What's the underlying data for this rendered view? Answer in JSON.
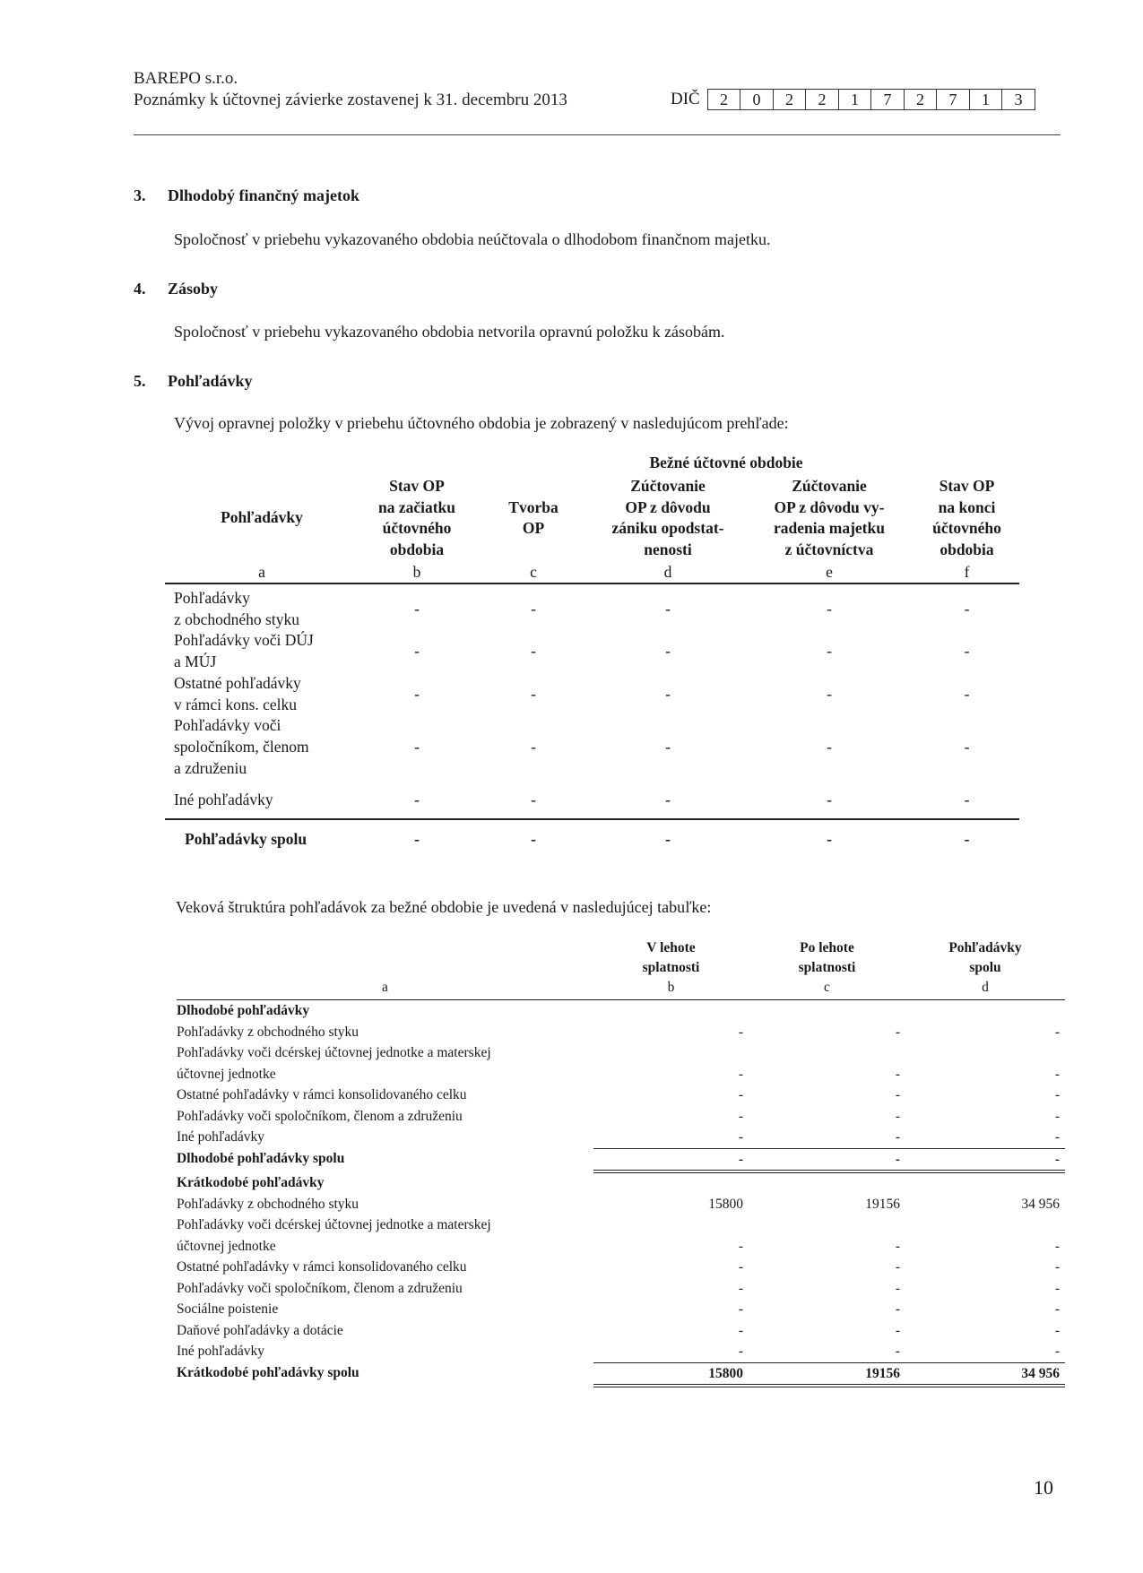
{
  "header": {
    "company": "BAREPO s.r.o.",
    "subtitle": "Poznámky k účtovnej závierke zostavenej k 31. decembru 2013",
    "dic_label": "DIČ",
    "dic_digits": [
      "2",
      "0",
      "2",
      "2",
      "1",
      "7",
      "2",
      "7",
      "1",
      "3"
    ]
  },
  "sections": [
    {
      "number": "3.",
      "title": "Dlhodobý finančný majetok",
      "text": "Spoločnosť v priebehu vykazovaného obdobia neúčtovala o dlhodobom finančnom majetku."
    },
    {
      "number": "4.",
      "title": "Zásoby",
      "text": "Spoločnosť v priebehu vykazovaného obdobia netvorila opravnú položku k zásobám."
    },
    {
      "number": "5.",
      "title": "Pohľadávky",
      "text": "Vývoj opravnej položky v priebehu účtovného obdobia je zobrazený v nasledujúcom prehľade:"
    }
  ],
  "table1": {
    "span_header": "Bežné účtovné obdobie",
    "columns": [
      {
        "lines": [
          "Pohľadávky"
        ],
        "letter": "a"
      },
      {
        "lines": [
          "Stav OP",
          "na začiatku",
          "účtovného",
          "obdobia"
        ],
        "letter": "b"
      },
      {
        "lines": [
          "Tvorba",
          "OP"
        ],
        "letter": "c"
      },
      {
        "lines": [
          "Zúčtovanie",
          "OP z dôvodu",
          "zániku opodstat-",
          "nenosti"
        ],
        "letter": "d"
      },
      {
        "lines": [
          "Zúčtovanie",
          "OP z dôvodu vy-",
          "radenia majetku",
          "z účtovníctva"
        ],
        "letter": "e"
      },
      {
        "lines": [
          "Stav OP",
          "na konci",
          "účtovného",
          "obdobia"
        ],
        "letter": "f"
      }
    ],
    "rows": [
      {
        "label": [
          "Pohľadávky",
          "z obchodného styku"
        ],
        "values": [
          "-",
          "-",
          "-",
          "-",
          "-"
        ]
      },
      {
        "label": [
          "Pohľadávky voči DÚJ",
          "a MÚJ"
        ],
        "values": [
          "-",
          "-",
          "-",
          "-",
          "-"
        ]
      },
      {
        "label": [
          "Ostatné pohľadávky",
          "v rámci kons. celku"
        ],
        "values": [
          "-",
          "-",
          "-",
          "-",
          "-"
        ]
      },
      {
        "label": [
          "Pohľadávky voči",
          "spoločníkom, členom",
          "a združeniu"
        ],
        "values": [
          "-",
          "-",
          "-",
          "-",
          "-"
        ]
      },
      {
        "label": [
          "Iné pohľadávky"
        ],
        "values": [
          "-",
          "-",
          "-",
          "-",
          "-"
        ]
      }
    ],
    "total": {
      "label": "Pohľadávky spolu",
      "values": [
        "-",
        "-",
        "-",
        "-",
        "-"
      ]
    }
  },
  "table2_intro": "Veková štruktúra pohľadávok za bežné obdobie je uvedená v nasledujúcej tabuľke:",
  "table2": {
    "columns": [
      {
        "lines": [
          ""
        ],
        "letter": "a"
      },
      {
        "lines": [
          "V lehote",
          "splatnosti"
        ],
        "letter": "b"
      },
      {
        "lines": [
          "Po lehote",
          "splatnosti"
        ],
        "letter": "c"
      },
      {
        "lines": [
          "Pohľadávky",
          "spolu"
        ],
        "letter": "d"
      }
    ],
    "rows": [
      {
        "label": "Dlhodobé pohľadávky",
        "type": "heading",
        "values": [
          "",
          "",
          ""
        ]
      },
      {
        "label": "Pohľadávky  z obchodného styku",
        "values": [
          "-",
          "-",
          "-"
        ]
      },
      {
        "label": "Pohľadávky voči dcérskej účtovnej jednotke a materskej",
        "values": [
          "",
          "",
          ""
        ]
      },
      {
        "label": "účtovnej jednotke",
        "values": [
          "-",
          "-",
          "-"
        ]
      },
      {
        "label": "Ostatné pohľadávky v rámci konsolidovaného celku",
        "values": [
          "-",
          "-",
          "-"
        ]
      },
      {
        "label": "Pohľadávky voči spoločníkom, členom a združeniu",
        "values": [
          "-",
          "-",
          "-"
        ]
      },
      {
        "label": "Iné pohľadávky",
        "values": [
          "-",
          "-",
          "-"
        ]
      },
      {
        "label": "Dlhodobé pohľadávky spolu",
        "type": "total",
        "values": [
          "-",
          "-",
          "-"
        ]
      },
      {
        "label": "Krátkodobé pohľadávky",
        "type": "heading",
        "values": [
          "",
          "",
          ""
        ]
      },
      {
        "label": "Pohľadávky z obchodného styku",
        "values": [
          "15800",
          "19156",
          "34 956"
        ]
      },
      {
        "label": "Pohľadávky voči dcérskej účtovnej jednotke a materskej",
        "values": [
          "",
          "",
          ""
        ]
      },
      {
        "label": "účtovnej jednotke",
        "values": [
          "-",
          "-",
          "-"
        ]
      },
      {
        "label": "Ostatné pohľadávky v rámci konsolidovaného celku",
        "values": [
          "-",
          "-",
          "-"
        ]
      },
      {
        "label": "Pohľadávky voči spoločníkom, členom a združeniu",
        "values": [
          "-",
          "-",
          "-"
        ]
      },
      {
        "label": "Sociálne poistenie",
        "values": [
          "-",
          "-",
          "-"
        ]
      },
      {
        "label": "Daňové pohľadávky a dotácie",
        "values": [
          "-",
          "-",
          "-"
        ]
      },
      {
        "label": "Iné pohľadávky",
        "values": [
          "-",
          "-",
          "-"
        ]
      },
      {
        "label": "Krátkodobé pohľadávky spolu",
        "type": "total",
        "values": [
          "15800",
          "19156",
          "34 956"
        ]
      }
    ]
  },
  "page_number": "10"
}
